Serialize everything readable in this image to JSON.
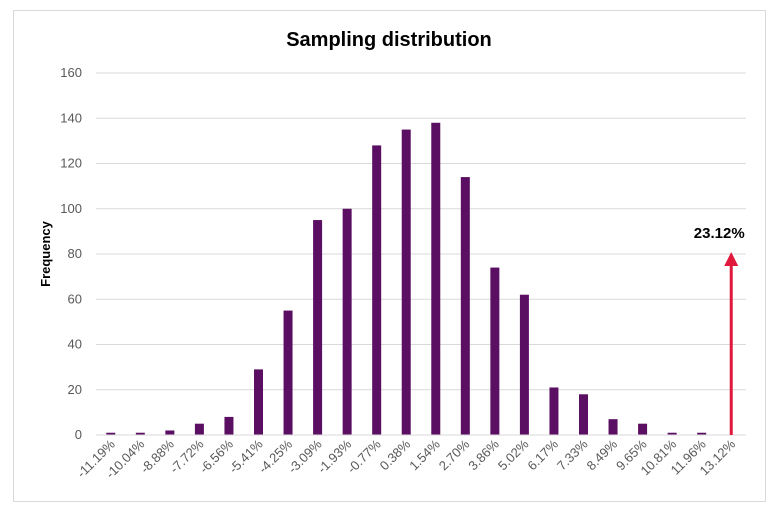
{
  "chart_data": {
    "type": "bar",
    "title": "Sampling distribution",
    "xlabel": "",
    "ylabel": "Frequency",
    "ylim": [
      0,
      160
    ],
    "yticks": [
      0,
      20,
      40,
      60,
      80,
      100,
      120,
      140,
      160
    ],
    "grid": true,
    "legend": "none",
    "bar_color": "#5b0f63",
    "categories": [
      "-11.19%",
      "-10.04%",
      "-8.88%",
      "-7.72%",
      "-6.56%",
      "-5.41%",
      "-4.25%",
      "-3.09%",
      "-1.93%",
      "-0.77%",
      "0.38%",
      "1.54%",
      "2.70%",
      "3.86%",
      "5.02%",
      "6.17%",
      "7.33%",
      "8.49%",
      "9.65%",
      "10.81%",
      "11.96%",
      "13.12%"
    ],
    "values": [
      1,
      1,
      2,
      5,
      8,
      29,
      55,
      95,
      100,
      128,
      135,
      138,
      114,
      74,
      62,
      21,
      18,
      7,
      5,
      1,
      1,
      0
    ],
    "annotation": {
      "label": "23.12%",
      "color": "#e0183c",
      "type": "arrow",
      "x_category": "13.12%",
      "y_value": 80
    }
  }
}
